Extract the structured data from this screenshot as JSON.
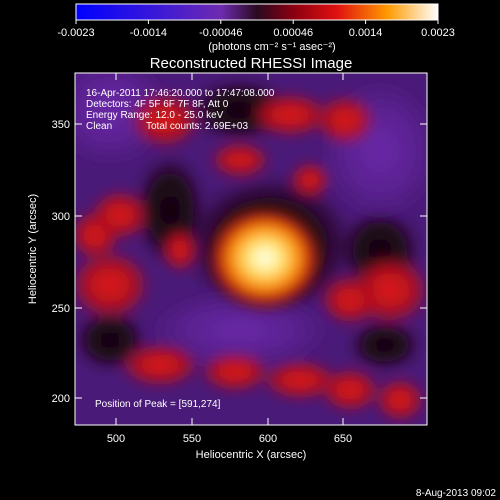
{
  "colorbar": {
    "ticks": [
      "-0.0023",
      "-0.0014",
      "-0.00046",
      "0.00046",
      "0.0014",
      "0.0023"
    ],
    "unit_label": "(photons cm⁻² s⁻¹ asec⁻²)"
  },
  "title": "Reconstructed RHESSI Image",
  "info": {
    "line1": "16-Apr-2011 17:46:20.000 to 17:47:08.000",
    "line2": "Detectors: 4F 5F 6F 7F 8F, Att 0",
    "line3": "Energy Range: 12.0 - 25.0 keV",
    "line4_left": "Clean",
    "line4_right": "Total counts: 2.69E+03",
    "peak": "Position of Peak = [591,274]"
  },
  "axes": {
    "xlabel": "Heliocentric X (arcsec)",
    "ylabel": "Heliocentric Y (arcsec)",
    "xticks": [
      "500",
      "550",
      "600",
      "650"
    ],
    "yticks": [
      "200",
      "250",
      "300",
      "350"
    ]
  },
  "footer": "8-Aug-2013 09:02"
}
